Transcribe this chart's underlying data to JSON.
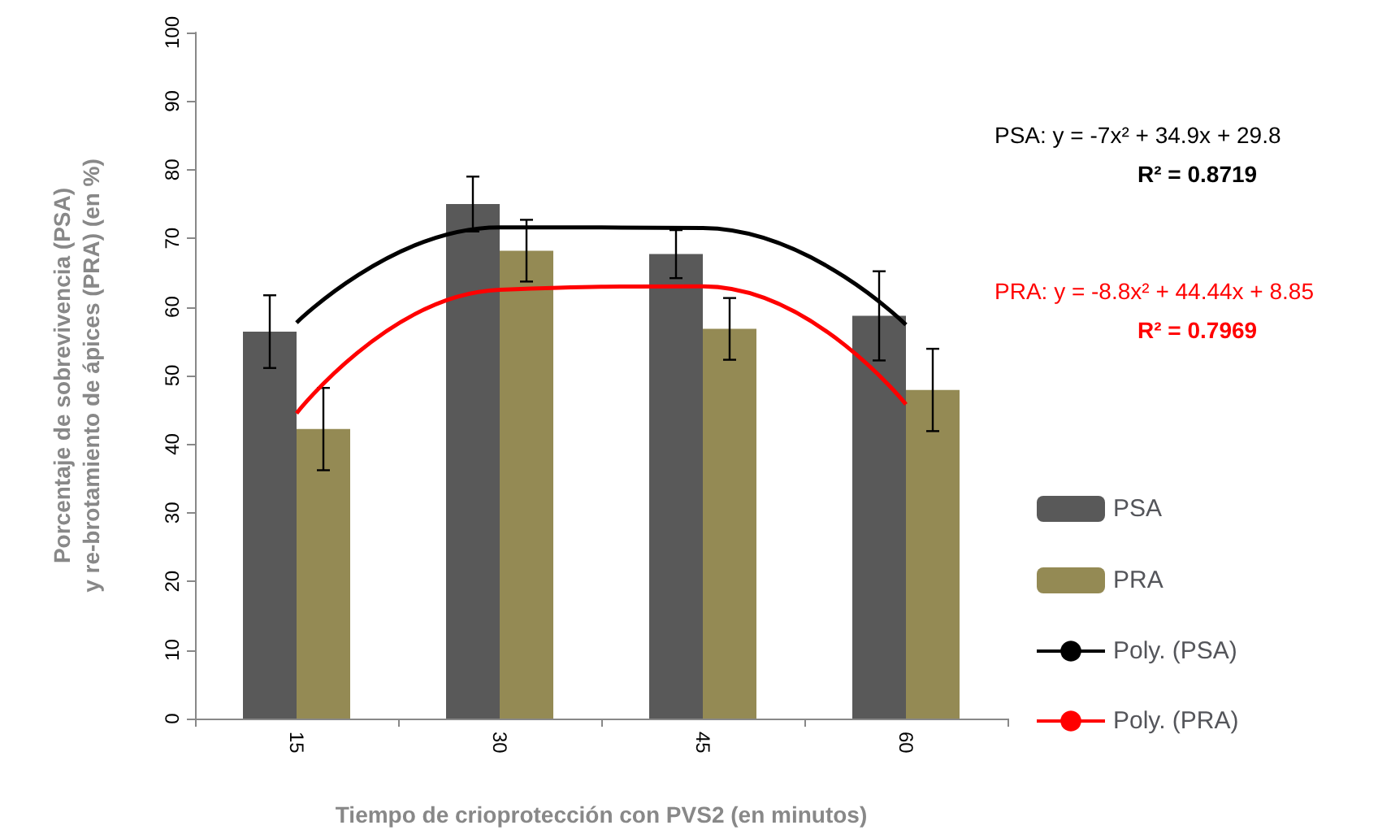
{
  "chart_data": {
    "type": "bar",
    "xlabel": "Tiempo de crioprotección con PVS2 (en minutos)",
    "ylabel": "Porcentaje de sobrevivencia (PSA)\ny re-brotamiento de ápices (PRA) (en %)",
    "categories": [
      "15",
      "30",
      "45",
      "60"
    ],
    "series": [
      {
        "name": "PSA",
        "color": "#595959",
        "values": [
          56.4,
          75,
          67.7,
          58.7
        ],
        "errors": [
          5.3,
          4,
          3.5,
          6.5
        ]
      },
      {
        "name": "PRA",
        "color": "#948a54",
        "values": [
          42.2,
          68.2,
          56.8,
          47.9
        ],
        "errors": [
          6,
          4.5,
          4.5,
          6
        ]
      },
      {
        "name": "Poly. (PSA)",
        "type": "line",
        "color": "#000000",
        "x": [
          "15",
          "30",
          "45",
          "60"
        ],
        "values": [
          57.7,
          71.6,
          71.5,
          57.4
        ],
        "marker": "none"
      },
      {
        "name": "Poly. (PRA)",
        "type": "line",
        "color": "#ff0000",
        "x": [
          "15",
          "30",
          "45",
          "60"
        ],
        "values": [
          44.5,
          62.5,
          63.0,
          45.8
        ],
        "marker": "none"
      }
    ],
    "ylim": [
      0,
      100
    ],
    "yticks": [
      0,
      10,
      20,
      30,
      40,
      50,
      60,
      70,
      80,
      90,
      100
    ],
    "grid": false,
    "legend": "right",
    "annotations": [
      "PSA: y = -7x² + 34.9x + 29.8",
      "R² = 0.8719",
      "PRA: y = -8.8x² + 44.44x + 8.85",
      "R² = 0.7969"
    ]
  }
}
